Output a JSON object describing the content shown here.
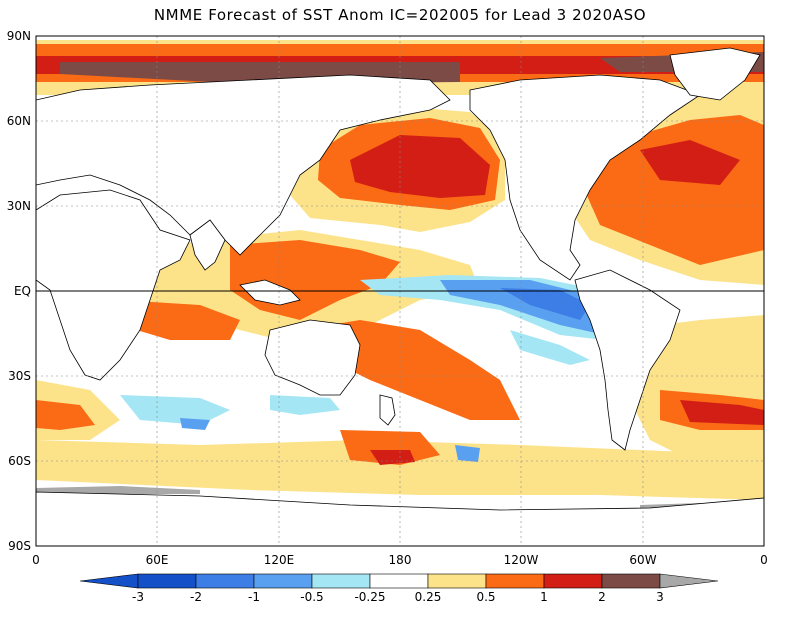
{
  "title": "NMME Forecast of SST Anom IC=202005 for Lead 3 2020ASO",
  "y_axis_labels": [
    "90N",
    "60N",
    "30N",
    "EQ",
    "30S",
    "60S",
    "90S"
  ],
  "x_axis_labels": [
    "0",
    "60E",
    "120E",
    "180",
    "120W",
    "60W",
    "0"
  ],
  "colorbar": {
    "colors": [
      "#1450c8",
      "#3c7ee6",
      "#5aa0f0",
      "#a5e6f5",
      "#ffffff",
      "#fce38a",
      "#fb6a14",
      "#d21e14",
      "#7d4b46",
      "#a8a8a8"
    ],
    "tick_labels": [
      "-3",
      "-2",
      "-1",
      "-0.5",
      "-0.25",
      "0.25",
      "0.5",
      "1",
      "2",
      "3"
    ]
  },
  "colors": {
    "land": "#ffffff",
    "coastline": "#000000",
    "gridline": "#888888",
    "equator": "#000000"
  }
}
